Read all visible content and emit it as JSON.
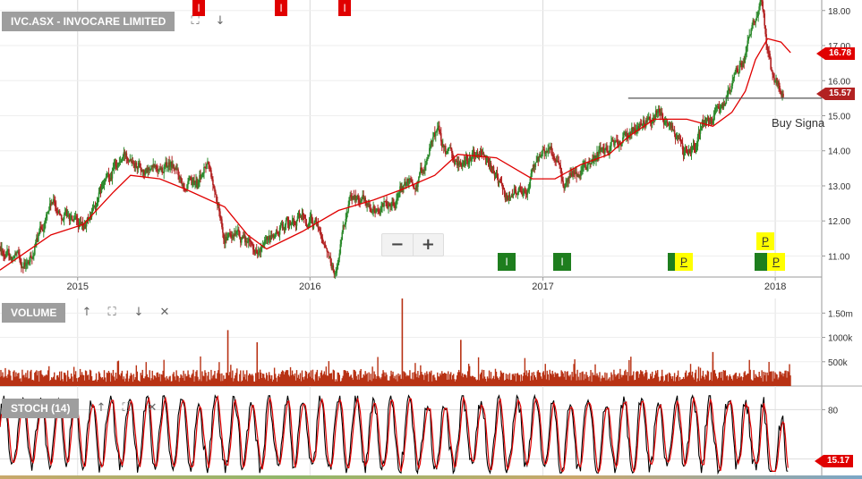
{
  "price_panel": {
    "title": "IVC.ASX - INVOCARE LIMITED",
    "buy_signal_text": "Buy Signa",
    "last_price_label": "15.57",
    "ma_price_label": "16.78",
    "zoom_out": "−",
    "zoom_in": "+"
  },
  "volume_panel": {
    "title": "VOLUME"
  },
  "stoch_panel": {
    "title": "STOCH (14)",
    "value_label": "15.17"
  },
  "events": {
    "top_markers": [
      "I",
      "I",
      "I"
    ],
    "bottom_markers": [
      "I",
      "I",
      "P",
      "P",
      "P"
    ]
  },
  "colors": {
    "up_candle": "#2e8b2e",
    "down_candle": "#b22222",
    "moving_average": "#e00000",
    "volume": "#b83214",
    "stoch_k": "#000000",
    "stoch_d": "#e00000",
    "panel_tag": "#9e9e9e",
    "marker_red": "#e00000",
    "marker_green": "#1e7e1e",
    "marker_yellow": "#ffff00"
  },
  "chart_data": [
    {
      "type": "candlestick",
      "title": "IVC.ASX - INVOCARE LIMITED",
      "x_tick_labels": [
        "2015",
        "2016",
        "2017",
        "2018"
      ],
      "y_tick_labels": [
        "11.00",
        "12.00",
        "13.00",
        "14.00",
        "15.00",
        "16.00",
        "17.00",
        "18.00"
      ],
      "ylim": [
        10.4,
        18.3
      ],
      "xlim": [
        "2014-09-01",
        "2018-03-15"
      ],
      "grid": true,
      "price_path": {
        "x": [
          "2014-09-01",
          "2014-10-15",
          "2014-11-20",
          "2015-01-10",
          "2015-02-25",
          "2015-03-25",
          "2015-04-20",
          "2015-05-25",
          "2015-07-01",
          "2015-07-25",
          "2015-08-20",
          "2015-09-25",
          "2015-10-20",
          "2015-11-25",
          "2015-12-20",
          "2016-01-15",
          "2016-02-10",
          "2016-03-05",
          "2016-04-15",
          "2016-05-25",
          "2016-06-20",
          "2016-07-20",
          "2016-08-01",
          "2016-08-20",
          "2016-10-01",
          "2016-11-05",
          "2016-12-05",
          "2017-01-10",
          "2017-02-01",
          "2017-02-15",
          "2017-04-01",
          "2017-05-10",
          "2017-06-01",
          "2017-07-01",
          "2017-08-01",
          "2017-08-15",
          "2017-09-10",
          "2017-10-10",
          "2017-11-15",
          "2017-12-10",
          "2017-12-25",
          "2018-01-15"
        ],
        "y": [
          11.2,
          10.7,
          12.5,
          11.7,
          13.5,
          14.0,
          13.4,
          13.6,
          12.9,
          13.6,
          11.6,
          11.3,
          11.1,
          12.0,
          12.0,
          11.8,
          10.5,
          12.8,
          12.3,
          12.9,
          13.2,
          14.7,
          13.9,
          13.6,
          13.9,
          12.7,
          13.0,
          14.2,
          13.1,
          13.2,
          14.0,
          14.4,
          14.8,
          15.1,
          14.3,
          13.8,
          14.8,
          15.2,
          16.8,
          18.1,
          16.3,
          15.6
        ]
      },
      "moving_average": {
        "x": [
          "2014-09-01",
          "2014-11-20",
          "2015-01-10",
          "2015-02-25",
          "2015-03-25",
          "2015-05-10",
          "2015-06-20",
          "2015-08-20",
          "2015-09-25",
          "2015-10-25",
          "2015-12-20",
          "2016-02-15",
          "2016-04-10",
          "2016-05-25",
          "2016-07-15",
          "2016-08-20",
          "2016-10-20",
          "2016-12-15",
          "2017-01-20",
          "2017-03-01",
          "2017-04-15",
          "2017-05-15",
          "2017-06-25",
          "2017-08-15",
          "2017-09-25",
          "2017-10-25",
          "2017-11-15",
          "2017-12-01",
          "2017-12-20",
          "2018-01-10",
          "2018-01-25"
        ],
        "y": [
          10.6,
          11.6,
          11.9,
          12.8,
          13.3,
          13.2,
          12.9,
          12.4,
          11.6,
          11.2,
          11.7,
          12.3,
          12.6,
          12.9,
          13.3,
          13.9,
          13.8,
          13.2,
          13.2,
          13.6,
          13.9,
          14.4,
          14.9,
          14.9,
          14.7,
          15.1,
          15.7,
          16.6,
          17.2,
          17.1,
          16.8
        ]
      },
      "horizontal_line": {
        "y": 15.5,
        "x_start": "2017-05-15",
        "x_end": "2018-03-15"
      }
    },
    {
      "type": "bar",
      "title": "VOLUME",
      "y_tick_labels": [
        "500k",
        "1000k",
        "1.50m"
      ],
      "ylim": [
        0,
        1800000
      ],
      "typical_volume": 250000,
      "spikes": [
        {
          "x": "2015-08-25",
          "value": 1150000
        },
        {
          "x": "2016-05-25",
          "value": 1800000
        },
        {
          "x": "2016-08-25",
          "value": 950000
        },
        {
          "x": "2015-10-10",
          "value": 900000
        },
        {
          "x": "2017-09-25",
          "value": 700000
        }
      ]
    },
    {
      "type": "line",
      "title": "STOCH (14)",
      "y_tick_labels": [
        "80"
      ],
      "ylim": [
        0,
        100
      ],
      "levels": [
        20,
        80
      ],
      "series": [
        {
          "name": "",
          "color": "#000000"
        },
        {
          "name": "",
          "color": "#e00000"
        }
      ]
    }
  ]
}
